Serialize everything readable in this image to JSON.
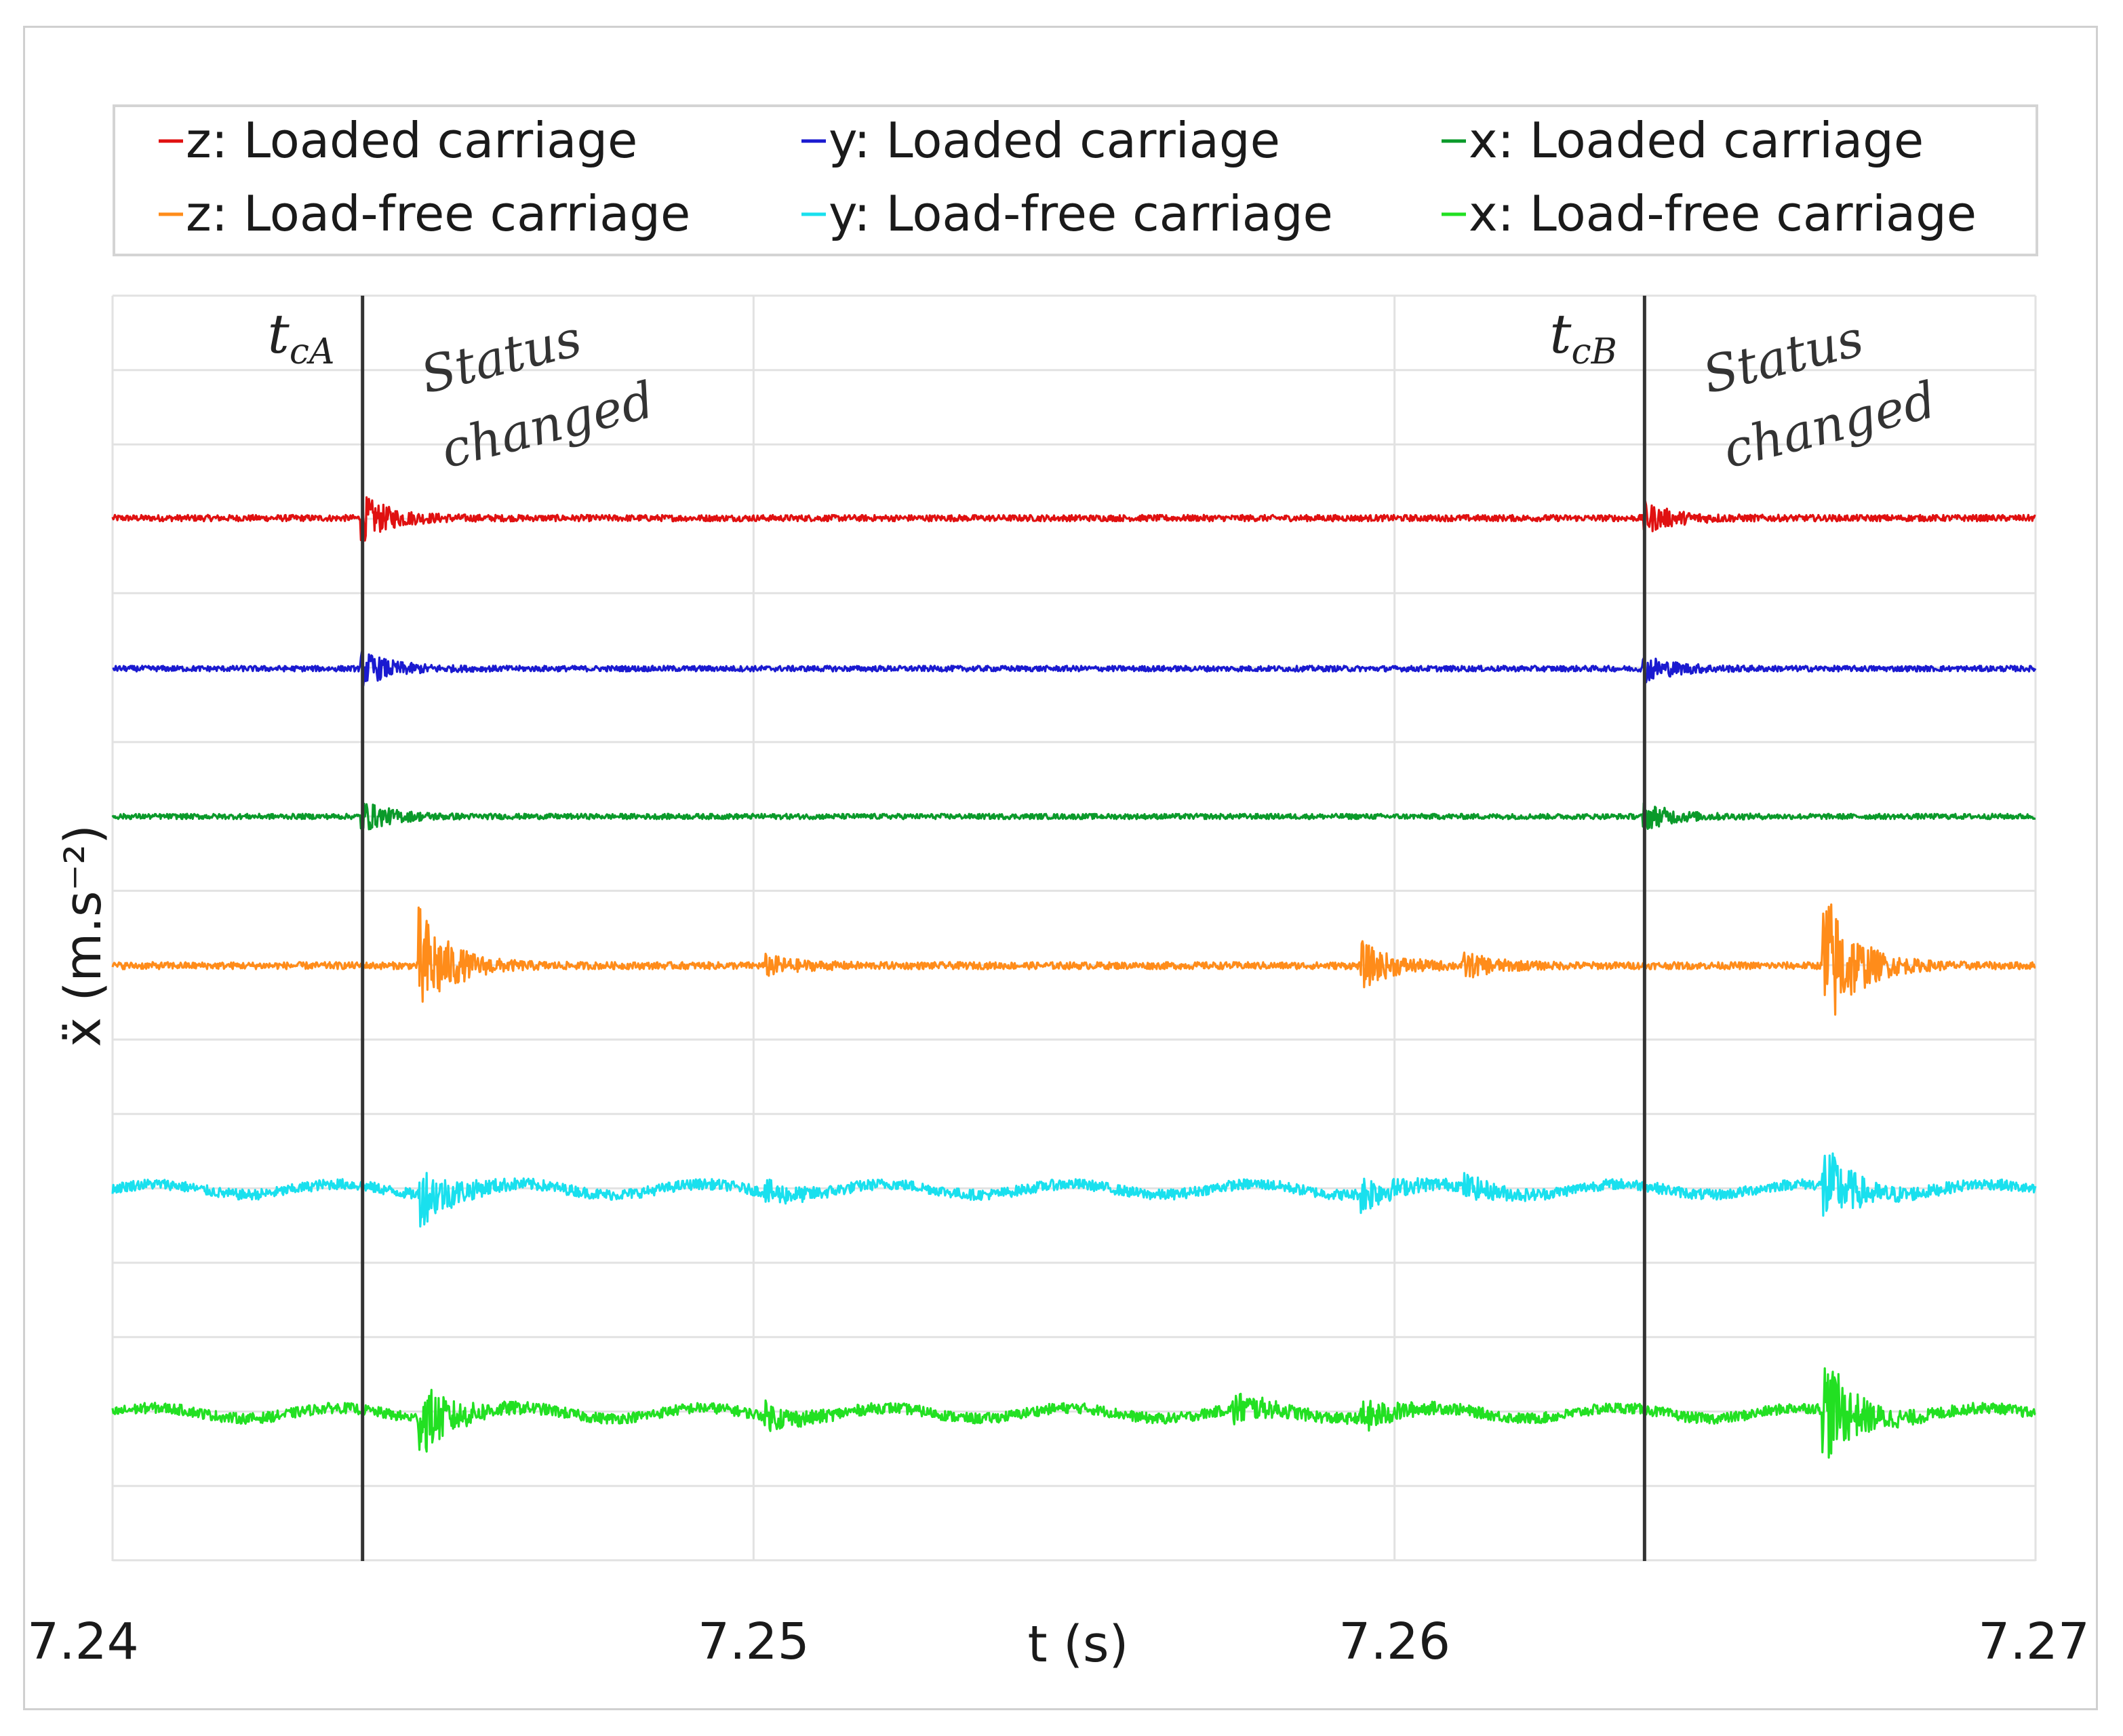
{
  "chart_data": {
    "type": "line",
    "title": "",
    "xlabel": "t (s)",
    "ylabel": "ẍ (m.s⁻²)",
    "xlim": [
      7.24,
      7.27
    ],
    "x_ticks": [
      "7.24",
      "7.25",
      "7.26",
      "7.27"
    ],
    "x_tick_values": [
      7.24,
      7.25,
      7.26,
      7.27
    ],
    "legend": {
      "placement": "top",
      "columns": 3
    },
    "series": [
      {
        "name": "z: Loaded carriage",
        "color": "#e01010",
        "baseline": 6,
        "noise": 0.018,
        "bursts": [
          [
            7.2439,
            0.12
          ],
          [
            7.2639,
            0.08
          ]
        ]
      },
      {
        "name": "y: Loaded carriage",
        "color": "#1a1ad0",
        "baseline": 5,
        "noise": 0.016,
        "bursts": [
          [
            7.2439,
            0.09
          ],
          [
            7.2639,
            0.07
          ]
        ]
      },
      {
        "name": "x: Loaded carriage",
        "color": "#0a9a2a",
        "baseline": 4,
        "noise": 0.015,
        "bursts": [
          [
            7.2439,
            0.08
          ],
          [
            7.2639,
            0.07
          ]
        ]
      },
      {
        "name": "z: Load-free carriage",
        "color": "#ff8c1a",
        "baseline": 3,
        "noise": 0.02,
        "bursts": [
          [
            7.2448,
            0.32
          ],
          [
            7.2502,
            0.05
          ],
          [
            7.2595,
            0.12
          ],
          [
            7.2611,
            0.06
          ],
          [
            7.2667,
            0.45
          ]
        ]
      },
      {
        "name": "y: Load-free carriage",
        "color": "#19e0ee",
        "baseline": 1.5,
        "noise": 0.03,
        "bursts": [
          [
            7.2448,
            0.16
          ],
          [
            7.2502,
            0.05
          ],
          [
            7.2595,
            0.09
          ],
          [
            7.2611,
            0.05
          ],
          [
            7.2667,
            0.22
          ]
        ]
      },
      {
        "name": "x: Load-free carriage",
        "color": "#22e022",
        "baseline": 0,
        "noise": 0.03,
        "bursts": [
          [
            7.2448,
            0.2
          ],
          [
            7.2502,
            0.06
          ],
          [
            7.2575,
            0.08
          ],
          [
            7.2595,
            0.08
          ],
          [
            7.2667,
            0.3
          ]
        ]
      }
    ],
    "markers": [
      {
        "time": 7.2439,
        "label_main": "t",
        "label_sub": "cA",
        "annotation_line1": "Status",
        "annotation_line2": "changed"
      },
      {
        "time": 7.2639,
        "label_main": "t",
        "label_sub": "cB",
        "annotation_line1": "Status",
        "annotation_line2": "changed"
      }
    ],
    "grid": true
  }
}
